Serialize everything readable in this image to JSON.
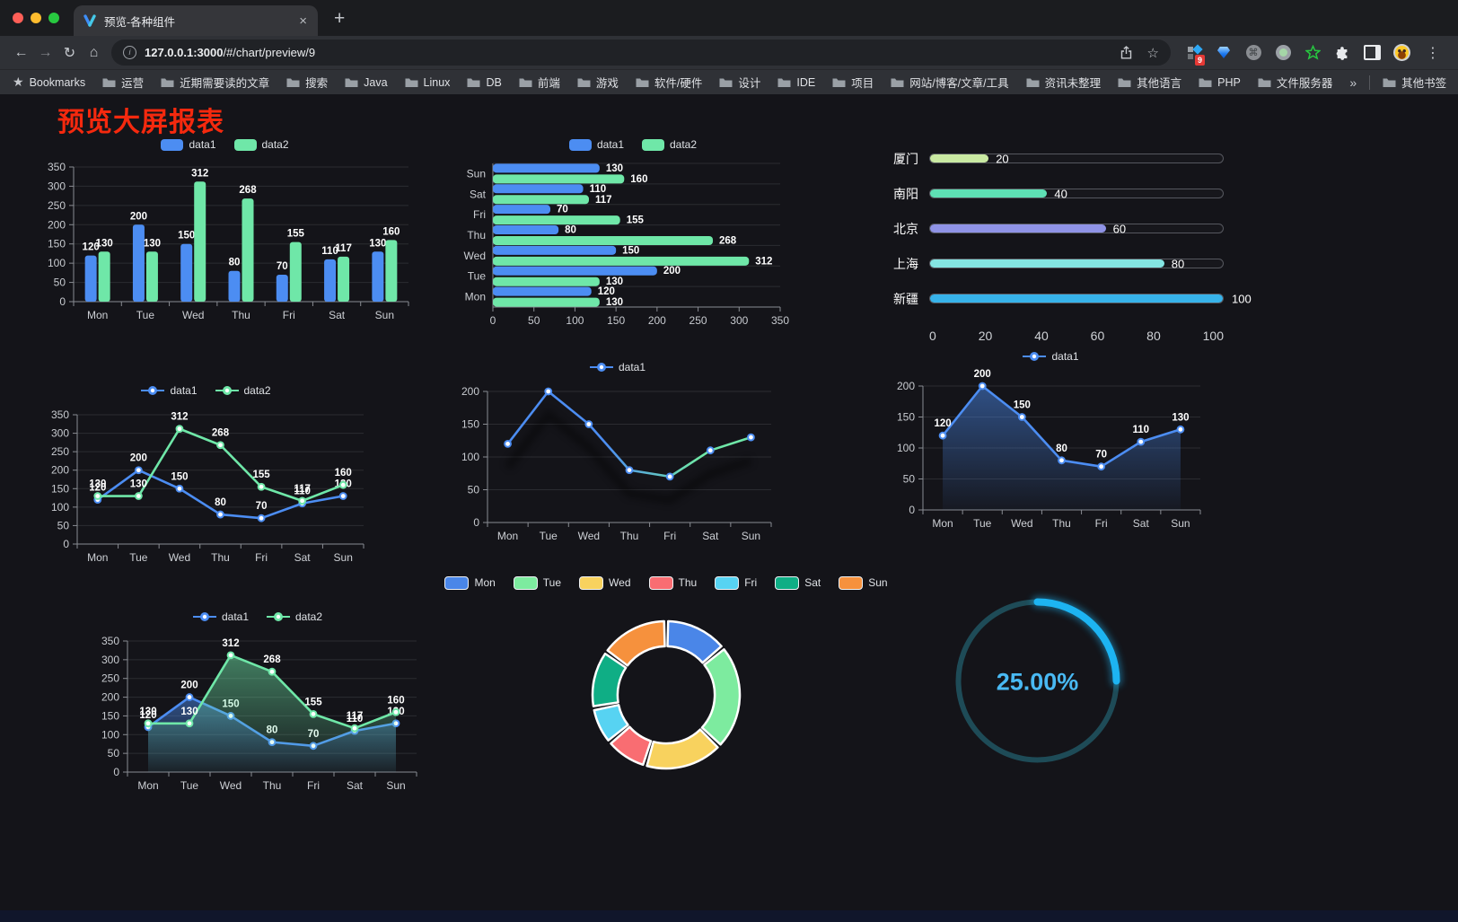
{
  "browser": {
    "tab_title": "预览-各种组件",
    "tab_close": "×",
    "new_tab": "+",
    "url_host": "127.0.0.1:3000",
    "url_path": "/#/chart/preview/9",
    "extension_badge": "9",
    "bookmarks_label": "Bookmarks",
    "bookmarks": [
      "运营",
      "近期需要读的文章",
      "搜索",
      "Java",
      "Linux",
      "DB",
      "前端",
      "游戏",
      "软件/硬件",
      "设计",
      "IDE",
      "项目",
      "网站/博客/文章/工具",
      "资讯未整理",
      "其他语言",
      "PHP",
      "文件服务器"
    ],
    "bookmarks_overflow": "»",
    "other_bookmarks": "其他书签"
  },
  "page": {
    "title": "预览大屏报表"
  },
  "colors": {
    "accent_blue": "#4c8df2",
    "accent_green": "#6fe7a8",
    "title_red": "#f5290e"
  },
  "chart_data": [
    {
      "id": "bar-vertical",
      "type": "bar",
      "categories": [
        "Mon",
        "Tue",
        "Wed",
        "Thu",
        "Fri",
        "Sat",
        "Sun"
      ],
      "series": [
        {
          "name": "data1",
          "color": "#4c8df2",
          "values": [
            120,
            200,
            150,
            80,
            70,
            110,
            130
          ]
        },
        {
          "name": "data2",
          "color": "#6fe7a8",
          "values": [
            130,
            130,
            312,
            268,
            155,
            117,
            160
          ]
        }
      ],
      "ylim": [
        0,
        350
      ],
      "yticks": [
        0,
        50,
        100,
        150,
        200,
        250,
        300,
        350
      ],
      "legend_position": "top",
      "show_labels": true,
      "grid": true
    },
    {
      "id": "bar-horizontal",
      "type": "hbar",
      "categories": [
        "Mon",
        "Tue",
        "Wed",
        "Thu",
        "Fri",
        "Sat",
        "Sun"
      ],
      "series": [
        {
          "name": "data1",
          "color": "#4c8df2",
          "values": [
            120,
            200,
            150,
            80,
            70,
            110,
            130
          ]
        },
        {
          "name": "data2",
          "color": "#6fe7a8",
          "values": [
            130,
            130,
            312,
            268,
            155,
            117,
            160
          ]
        }
      ],
      "xlim": [
        0,
        350
      ],
      "xticks": [
        0,
        50,
        100,
        150,
        200,
        250,
        300,
        350
      ],
      "legend_position": "top",
      "show_labels": true,
      "grid": true
    },
    {
      "id": "progress-bars",
      "type": "bar",
      "items": [
        {
          "label": "厦门",
          "value": 20,
          "color": "#c9e9a2"
        },
        {
          "label": "南阳",
          "value": 40,
          "color": "#5ee0b4"
        },
        {
          "label": "北京",
          "value": 60,
          "color": "#8f93e6"
        },
        {
          "label": "上海",
          "value": 80,
          "color": "#84e5e2"
        },
        {
          "label": "新疆",
          "value": 100,
          "color": "#37b3ea"
        }
      ],
      "xlim": [
        0,
        100
      ],
      "xticks": [
        0,
        20,
        40,
        60,
        80,
        100
      ]
    },
    {
      "id": "line-dual",
      "type": "line",
      "categories": [
        "Mon",
        "Tue",
        "Wed",
        "Thu",
        "Fri",
        "Sat",
        "Sun"
      ],
      "series": [
        {
          "name": "data1",
          "color": "#4c8df2",
          "values": [
            120,
            200,
            150,
            80,
            70,
            110,
            130
          ]
        },
        {
          "name": "data2",
          "color": "#6fe7a8",
          "values": [
            130,
            130,
            312,
            268,
            155,
            117,
            160
          ]
        }
      ],
      "ylim": [
        0,
        350
      ],
      "yticks": [
        0,
        50,
        100,
        150,
        200,
        250,
        300,
        350
      ],
      "legend_position": "top",
      "show_labels": true,
      "grid": true
    },
    {
      "id": "line-gradient",
      "type": "line",
      "categories": [
        "Mon",
        "Tue",
        "Wed",
        "Thu",
        "Fri",
        "Sat",
        "Sun"
      ],
      "series": [
        {
          "name": "data1",
          "color": "#4c8df2",
          "gradient": [
            "#4c8df2",
            "#6fe7a8"
          ],
          "values": [
            120,
            200,
            150,
            80,
            70,
            110,
            130
          ]
        }
      ],
      "ylim": [
        0,
        200
      ],
      "yticks": [
        0,
        50,
        100,
        150,
        200
      ],
      "legend_position": "top",
      "show_labels": false,
      "shadow": true,
      "grid": true
    },
    {
      "id": "line-area-single",
      "type": "area",
      "categories": [
        "Mon",
        "Tue",
        "Wed",
        "Thu",
        "Fri",
        "Sat",
        "Sun"
      ],
      "series": [
        {
          "name": "data1",
          "color": "#4c8df2",
          "area": true,
          "values": [
            120,
            200,
            150,
            80,
            70,
            110,
            130
          ]
        }
      ],
      "ylim": [
        0,
        200
      ],
      "yticks": [
        0,
        50,
        100,
        150,
        200
      ],
      "legend_position": "top",
      "show_labels": true,
      "grid": true
    },
    {
      "id": "line-area-dual",
      "type": "area",
      "categories": [
        "Mon",
        "Tue",
        "Wed",
        "Thu",
        "Fri",
        "Sat",
        "Sun"
      ],
      "series": [
        {
          "name": "data1",
          "color": "#4c8df2",
          "area": true,
          "values": [
            120,
            200,
            150,
            80,
            70,
            110,
            130
          ]
        },
        {
          "name": "data2",
          "color": "#6fe7a8",
          "area": true,
          "values": [
            130,
            130,
            312,
            268,
            155,
            117,
            160
          ]
        }
      ],
      "ylim": [
        0,
        350
      ],
      "yticks": [
        0,
        50,
        100,
        150,
        200,
        250,
        300,
        350
      ],
      "legend_position": "top",
      "show_labels": true,
      "grid": true
    },
    {
      "id": "donut",
      "type": "pie",
      "categories": [
        "Mon",
        "Tue",
        "Wed",
        "Thu",
        "Fri",
        "Sat",
        "Sun"
      ],
      "values": [
        120,
        200,
        150,
        80,
        70,
        110,
        130
      ],
      "colors": [
        "#4a86e8",
        "#7deb9f",
        "#f8d25e",
        "#f96d72",
        "#57d3f2",
        "#0fae85",
        "#f6913d"
      ],
      "inner_radius_ratio": 0.66,
      "legend_position": "top"
    },
    {
      "id": "gauge",
      "type": "gauge",
      "value": 25,
      "label": "25.00%",
      "arc_color": "#1db4f2",
      "track_color": "#1e4b57",
      "text_color": "#49b9f3"
    }
  ]
}
